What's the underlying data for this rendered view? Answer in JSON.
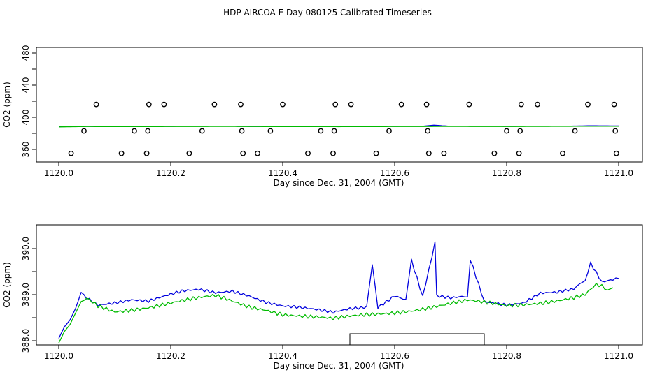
{
  "title": "HDP AIRCOA E  Day 080125  Calibrated Timeseries",
  "colors": {
    "blue": "#0000dd",
    "green": "#00bb00",
    "frame": "#000000",
    "points": "#000000"
  },
  "chart_data": [
    {
      "type": "line",
      "panel": "top",
      "xlabel": "Day since Dec. 31, 2004 (GMT)",
      "ylabel": "CO2 (ppm)",
      "xlim": [
        1120.0,
        1121.0
      ],
      "ylim": [
        350,
        480
      ],
      "xticks": [
        "1120.0",
        "1120.2",
        "1120.4",
        "1120.6",
        "1120.8",
        "1121.0"
      ],
      "yticks": [
        "360",
        "400",
        "440",
        "480"
      ],
      "y_minor_ticks": [
        380,
        420,
        460
      ],
      "grid": false,
      "series": [
        {
          "color": "blue",
          "x": [
            1120.0,
            1120.04,
            1120.08,
            1120.12,
            1120.16,
            1120.2,
            1120.25,
            1120.3,
            1120.35,
            1120.4,
            1120.45,
            1120.5,
            1120.55,
            1120.6,
            1120.65,
            1120.67,
            1120.7,
            1120.75,
            1120.8,
            1120.85,
            1120.9,
            1120.95,
            1121.0
          ],
          "y": [
            388.2,
            388.7,
            388.6,
            388.5,
            388.6,
            388.7,
            388.9,
            388.8,
            388.6,
            388.7,
            388.5,
            388.6,
            388.9,
            388.7,
            388.9,
            390.2,
            388.8,
            389.0,
            388.7,
            388.8,
            388.9,
            389.4,
            389.2
          ]
        },
        {
          "color": "green",
          "x": [
            1120.0,
            1120.05,
            1120.1,
            1120.15,
            1120.2,
            1120.3,
            1120.4,
            1120.5,
            1120.6,
            1120.7,
            1120.8,
            1120.9,
            1121.0
          ],
          "y": [
            388.0,
            388.5,
            388.4,
            388.4,
            388.5,
            388.6,
            388.4,
            388.3,
            388.5,
            388.6,
            388.5,
            388.7,
            388.9
          ]
        },
        {
          "color": "points",
          "marker": "open-circle",
          "x": [
            1120.022,
            1120.045,
            1120.067,
            1120.112,
            1120.135,
            1120.157,
            1120.159,
            1120.161,
            1120.188,
            1120.233,
            1120.256,
            1120.278,
            1120.325,
            1120.327,
            1120.329,
            1120.355,
            1120.378,
            1120.4,
            1120.445,
            1120.468,
            1120.49,
            1120.492,
            1120.494,
            1120.522,
            1120.567,
            1120.59,
            1120.612,
            1120.657,
            1120.659,
            1120.661,
            1120.688,
            1120.733,
            1120.778,
            1120.8,
            1120.822,
            1120.824,
            1120.826,
            1120.855,
            1120.9,
            1120.922,
            1120.945,
            1120.992,
            1120.994,
            1120.996
          ],
          "y": [
            355,
            383,
            416,
            355,
            383,
            355,
            383,
            416,
            416,
            355,
            383,
            416,
            416,
            383,
            355,
            355,
            383,
            416,
            355,
            383,
            355,
            383,
            416,
            416,
            355,
            383,
            416,
            416,
            383,
            355,
            355,
            416,
            355,
            383,
            355,
            383,
            416,
            416,
            355,
            383,
            416,
            416,
            383,
            355
          ]
        }
      ]
    },
    {
      "type": "line",
      "panel": "bottom",
      "xlabel": "Day since Dec. 31, 2004 (GMT)",
      "ylabel": "CO2 (ppm)",
      "xlim": [
        1120.0,
        1121.0
      ],
      "ylim": [
        387.9,
        390.4
      ],
      "xticks": [
        "1120.0",
        "1120.2",
        "1120.4",
        "1120.6",
        "1120.8",
        "1121.0"
      ],
      "yticks": [
        "388.0",
        "389.0",
        "390.0"
      ],
      "y_minor_ticks": [
        388.5,
        389.5
      ],
      "grid": false,
      "series": [
        {
          "color": "blue",
          "x": [
            1120.0,
            1120.01,
            1120.02,
            1120.03,
            1120.04,
            1120.05,
            1120.07,
            1120.1,
            1120.13,
            1120.16,
            1120.19,
            1120.22,
            1120.25,
            1120.28,
            1120.31,
            1120.34,
            1120.37,
            1120.4,
            1120.43,
            1120.46,
            1120.49,
            1120.52,
            1120.55,
            1120.56,
            1120.57,
            1120.6,
            1120.62,
            1120.63,
            1120.65,
            1120.672,
            1120.675,
            1120.7,
            1120.73,
            1120.735,
            1120.76,
            1120.8,
            1120.83,
            1120.86,
            1120.89,
            1120.92,
            1120.94,
            1120.95,
            1120.97,
            1121.0
          ],
          "y": [
            388.05,
            388.3,
            388.45,
            388.7,
            389.05,
            388.95,
            388.8,
            388.85,
            388.9,
            388.85,
            388.95,
            389.05,
            389.1,
            389.05,
            389.1,
            389.0,
            388.85,
            388.75,
            388.7,
            388.65,
            388.6,
            388.7,
            388.75,
            389.65,
            388.75,
            389.0,
            388.9,
            389.75,
            388.95,
            390.15,
            388.95,
            388.9,
            388.95,
            389.75,
            388.85,
            388.8,
            388.85,
            389.05,
            389.05,
            389.1,
            389.3,
            389.65,
            389.25,
            389.35
          ]
        },
        {
          "color": "green",
          "x": [
            1120.0,
            1120.01,
            1120.02,
            1120.03,
            1120.04,
            1120.05,
            1120.07,
            1120.1,
            1120.13,
            1120.16,
            1120.19,
            1120.22,
            1120.25,
            1120.28,
            1120.31,
            1120.34,
            1120.37,
            1120.4,
            1120.43,
            1120.46,
            1120.49,
            1120.52,
            1120.55,
            1120.58,
            1120.61,
            1120.64,
            1120.67,
            1120.7,
            1120.73,
            1120.76,
            1120.8,
            1120.83,
            1120.86,
            1120.89,
            1120.92,
            1120.94,
            1120.96,
            1120.98,
            1120.99
          ],
          "y": [
            387.95,
            388.2,
            388.35,
            388.6,
            388.85,
            388.9,
            388.75,
            388.65,
            388.7,
            388.75,
            388.8,
            388.85,
            388.9,
            388.95,
            388.85,
            388.75,
            388.7,
            388.6,
            388.55,
            388.5,
            388.45,
            388.5,
            388.55,
            388.6,
            388.65,
            388.7,
            388.75,
            388.8,
            388.85,
            388.8,
            388.75,
            388.8,
            388.85,
            388.9,
            388.95,
            389.0,
            389.2,
            389.1,
            389.15
          ]
        }
      ],
      "annotations": [
        {
          "type": "rectangle",
          "x": [
            1120.52,
            1120.76
          ],
          "y": [
            387.9,
            388.03
          ]
        }
      ]
    }
  ]
}
